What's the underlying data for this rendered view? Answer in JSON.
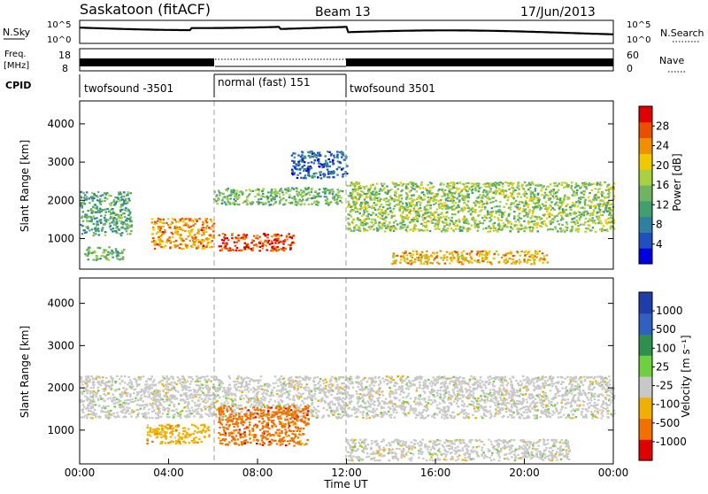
{
  "header": {
    "site": "Saskatoon (fitACF)",
    "beam": "Beam 13",
    "date": "17/Jun/2013"
  },
  "strips": {
    "nsky": {
      "label": "N.Sky",
      "ticks": [
        "10^5",
        "10^0"
      ],
      "right_label": "N.Search",
      "right_ticks": [
        "10^5",
        "10^0"
      ]
    },
    "freq": {
      "label_line1": "Freq.",
      "label_line2": "[MHz]",
      "ticks": [
        "18",
        "8"
      ],
      "right_label": "Nave",
      "right_ticks": [
        "60",
        "0"
      ]
    },
    "cpid": {
      "label": "CPID",
      "modes": [
        {
          "name": "twofsound -3501",
          "start": 0,
          "end": 6
        },
        {
          "name": "normal (fast) 151",
          "start": 6,
          "end": 12
        },
        {
          "name": "twofsound 3501",
          "start": 12,
          "end": 24
        }
      ]
    }
  },
  "chart_data": [
    {
      "type": "heatmap",
      "name": "power",
      "ylabel": "Slant Range [km]",
      "xlim": [
        0,
        24
      ],
      "ylim": [
        200,
        4600
      ],
      "yticks": [
        1000,
        2000,
        3000,
        4000
      ],
      "colorbar": {
        "label": "Power [dB]",
        "range": [
          0,
          32
        ],
        "ticks": [
          "4",
          "8",
          "12",
          "16",
          "20",
          "24",
          "28"
        ],
        "colors": [
          "#0000e0",
          "#1f4fc0",
          "#2f7fa0",
          "#3f9f6f",
          "#6fb45f",
          "#a9d040",
          "#f0c800",
          "#f09000",
          "#e85000",
          "#e00000"
        ]
      },
      "regions": [
        {
          "t0": 0.0,
          "t1": 2.3,
          "r0": 1100,
          "r1": 2250,
          "level": 12
        },
        {
          "t0": 0.2,
          "t1": 2.0,
          "r0": 450,
          "r1": 800,
          "level": 14
        },
        {
          "t0": 3.2,
          "t1": 6.0,
          "r0": 750,
          "r1": 1550,
          "level": 24
        },
        {
          "t0": 6.2,
          "t1": 9.6,
          "r0": 700,
          "r1": 1150,
          "level": 28
        },
        {
          "t0": 6.0,
          "t1": 11.8,
          "r0": 1900,
          "r1": 2350,
          "level": 14
        },
        {
          "t0": 12.0,
          "t1": 24.0,
          "r0": 1200,
          "r1": 2500,
          "level": 16
        },
        {
          "t0": 14.0,
          "t1": 21.0,
          "r0": 350,
          "r1": 700,
          "level": 22
        },
        {
          "t0": 9.5,
          "t1": 12.0,
          "r0": 2600,
          "r1": 3300,
          "level": 6
        }
      ]
    },
    {
      "type": "heatmap",
      "name": "velocity",
      "ylabel": "Slant Range [km]",
      "xlabel": "Time UT",
      "xlim": [
        0,
        24
      ],
      "ylim": [
        200,
        4600
      ],
      "xticks": [
        "00:00",
        "04:00",
        "08:00",
        "12:00",
        "16:00",
        "20:00",
        "00:00"
      ],
      "yticks": [
        1000,
        2000,
        3000,
        4000
      ],
      "colorbar": {
        "label": "Velocity [m s⁻¹]",
        "ticks": [
          "1000",
          "500",
          "100",
          "25",
          "-25",
          "-100",
          "-500",
          "-1000"
        ],
        "colors": [
          "#1f3fa8",
          "#3060c0",
          "#2f8f4f",
          "#6fcf3f",
          "#c8c8c8",
          "#f0b000",
          "#f07000",
          "#e00000"
        ]
      },
      "regions": [
        {
          "t0": 0.0,
          "t1": 24.0,
          "r0": 1300,
          "r1": 2300,
          "level": "ground"
        },
        {
          "t0": 3.0,
          "t1": 5.8,
          "r0": 700,
          "r1": 1150,
          "level": "-100"
        },
        {
          "t0": 6.2,
          "t1": 10.3,
          "r0": 650,
          "r1": 1600,
          "level": "-500"
        },
        {
          "t0": 12.0,
          "t1": 22.0,
          "r0": 300,
          "r1": 800,
          "level": "ground"
        }
      ]
    }
  ],
  "colors": {
    "axis": "#000000",
    "dashed_marker": "#a0a0a0"
  }
}
